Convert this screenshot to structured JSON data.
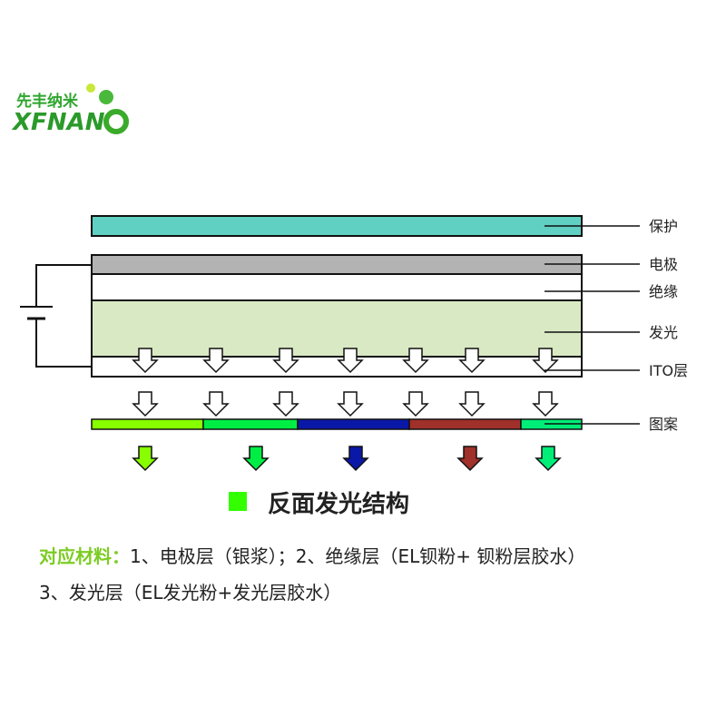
{
  "logo": {
    "cn": "先丰纳米",
    "en": "XFNAN",
    "en_o": "O",
    "reg": "®"
  },
  "layers": {
    "protect": {
      "label": "保护",
      "color": "#5fd0c2"
    },
    "electrode": {
      "label": "电极",
      "color": "#b3b3b3"
    },
    "insulation": {
      "label": "绝缘",
      "color": "#ffffff"
    },
    "luminous": {
      "label": "发光",
      "color": "#d9e9c3"
    },
    "ito": {
      "label": "ITO层",
      "color": "#ffffff"
    },
    "pattern": {
      "label": "图案",
      "segments": [
        "#88ff00",
        "#00ee44",
        "#0a18a8",
        "#a0302a",
        "#00ee77"
      ]
    }
  },
  "output_arrow_colors": [
    "#88ff00",
    "#00ee44",
    "#0a18a8",
    "#a0302a",
    "#00ee77"
  ],
  "legend": {
    "color": "#33ff00",
    "title": "反面发光结构"
  },
  "materials": {
    "heading": "对应材料：",
    "line1": "1、电极层（银浆）；2、绝缘层（EL钡粉+ 钡粉层胶水）",
    "line2": "3、发光层（EL发光粉+发光层胶水）"
  }
}
